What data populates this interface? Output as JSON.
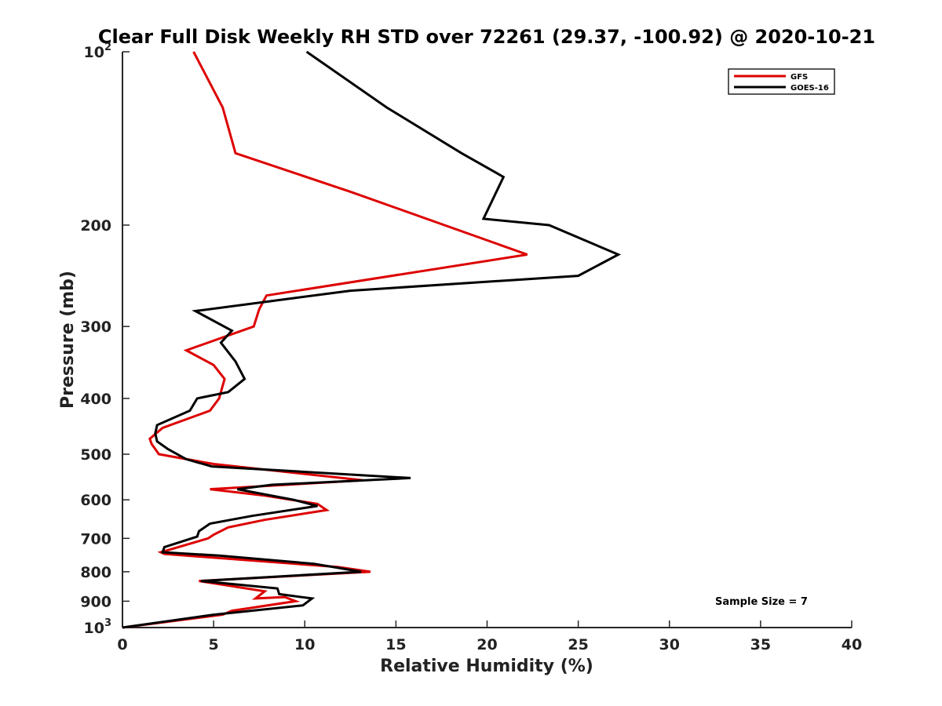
{
  "chart_data": {
    "type": "line",
    "title": "Clear Full Disk Weekly RH STD over 72261 (29.37, -100.92) @ 2020-10-21",
    "xlabel": "Relative Humidity (%)",
    "ylabel": "Pressure (mb)",
    "xlim": [
      0,
      40
    ],
    "ylim": [
      1000,
      100
    ],
    "y_scale": "log",
    "x_ticks": [
      "0",
      "5",
      "10",
      "15",
      "20",
      "25",
      "30",
      "35",
      "40"
    ],
    "y_ticks": [
      {
        "value": 100,
        "base": "10",
        "exp": "2"
      },
      {
        "value": 200,
        "label": "200"
      },
      {
        "value": 300,
        "label": "300"
      },
      {
        "value": 400,
        "label": "400"
      },
      {
        "value": 500,
        "label": "500"
      },
      {
        "value": 600,
        "label": "600"
      },
      {
        "value": 700,
        "label": "700"
      },
      {
        "value": 800,
        "label": "800"
      },
      {
        "value": 900,
        "label": "900"
      },
      {
        "value": 1000,
        "base": "10",
        "exp": "3"
      }
    ],
    "grid": false,
    "legend_position": "top-right",
    "annotation": "Sample Size = 7",
    "series": [
      {
        "name": "GFS",
        "color": "#dd0000",
        "points": [
          [
            3.9,
            100
          ],
          [
            5.5,
            125
          ],
          [
            6.2,
            150
          ],
          [
            12.5,
            175
          ],
          [
            22.2,
            225
          ],
          [
            7.9,
            265
          ],
          [
            7.5,
            280
          ],
          [
            7.2,
            300
          ],
          [
            3.5,
            330
          ],
          [
            5.0,
            350
          ],
          [
            5.6,
            370
          ],
          [
            5.3,
            400
          ],
          [
            4.8,
            420
          ],
          [
            2.2,
            450
          ],
          [
            1.5,
            470
          ],
          [
            1.6,
            480
          ],
          [
            2.0,
            500
          ],
          [
            5.0,
            520
          ],
          [
            13.2,
            555
          ],
          [
            4.8,
            575
          ],
          [
            7.8,
            590
          ],
          [
            10.7,
            610
          ],
          [
            11.2,
            625
          ],
          [
            7.8,
            650
          ],
          [
            5.8,
            670
          ],
          [
            5.0,
            690
          ],
          [
            4.7,
            700
          ],
          [
            2.1,
            740
          ],
          [
            2.3,
            745
          ],
          [
            11.8,
            785
          ],
          [
            13.6,
            800
          ],
          [
            4.2,
            830
          ],
          [
            7.8,
            865
          ],
          [
            7.3,
            890
          ],
          [
            8.9,
            885
          ],
          [
            9.5,
            900
          ],
          [
            6.0,
            935
          ],
          [
            5.5,
            950
          ],
          [
            0.0,
            1000
          ]
        ]
      },
      {
        "name": "GOES-16",
        "color": "#000000",
        "points": [
          [
            10.1,
            100
          ],
          [
            14.5,
            125
          ],
          [
            18.6,
            150
          ],
          [
            20.9,
            165
          ],
          [
            19.8,
            195
          ],
          [
            23.4,
            200
          ],
          [
            27.2,
            225
          ],
          [
            25.0,
            245
          ],
          [
            12.5,
            260
          ],
          [
            4.0,
            282
          ],
          [
            6.0,
            305
          ],
          [
            5.4,
            320
          ],
          [
            6.2,
            345
          ],
          [
            6.7,
            370
          ],
          [
            5.8,
            390
          ],
          [
            4.1,
            400
          ],
          [
            3.7,
            420
          ],
          [
            1.9,
            445
          ],
          [
            1.8,
            460
          ],
          [
            1.9,
            475
          ],
          [
            2.5,
            490
          ],
          [
            3.5,
            510
          ],
          [
            4.9,
            525
          ],
          [
            15.8,
            550
          ],
          [
            8.2,
            565
          ],
          [
            6.3,
            575
          ],
          [
            9.4,
            600
          ],
          [
            10.7,
            615
          ],
          [
            7.1,
            640
          ],
          [
            4.8,
            660
          ],
          [
            4.2,
            680
          ],
          [
            4.1,
            695
          ],
          [
            2.3,
            725
          ],
          [
            2.2,
            740
          ],
          [
            5.3,
            750
          ],
          [
            10.5,
            775
          ],
          [
            13.1,
            800
          ],
          [
            4.3,
            830
          ],
          [
            8.5,
            855
          ],
          [
            8.6,
            875
          ],
          [
            10.4,
            890
          ],
          [
            9.9,
            915
          ],
          [
            5.0,
            950
          ],
          [
            0.0,
            1000
          ]
        ]
      }
    ]
  }
}
